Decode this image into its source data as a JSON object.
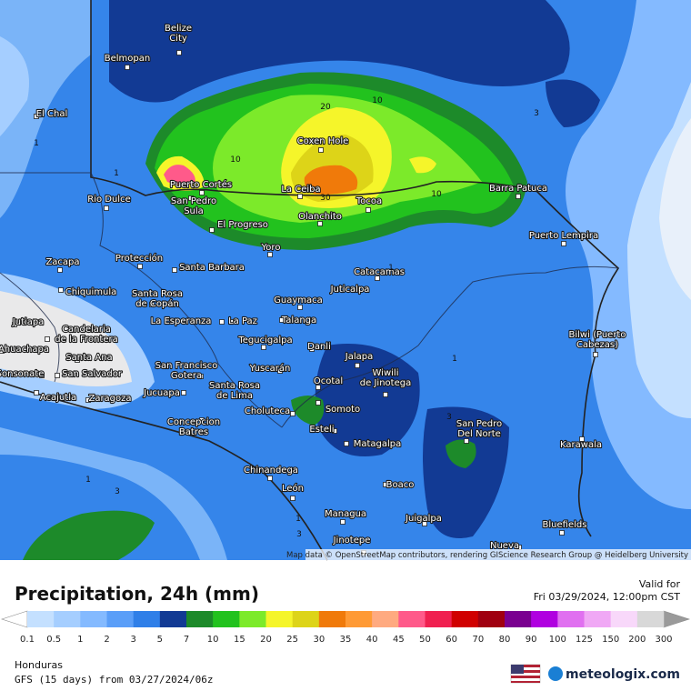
{
  "map": {
    "places": [
      {
        "lines": [
          "Belize",
          "City"
        ]
      },
      {
        "lines": [
          "Belmopan"
        ]
      },
      {
        "lines": [
          "El Chal"
        ]
      },
      {
        "lines": [
          "Rio Dulce"
        ]
      },
      {
        "lines": [
          "Puerto Cortés"
        ]
      },
      {
        "lines": [
          "San Pedro",
          "Sula"
        ]
      },
      {
        "lines": [
          "El Progreso"
        ]
      },
      {
        "lines": [
          "Coxen Hole"
        ]
      },
      {
        "lines": [
          "La Ceiba"
        ]
      },
      {
        "lines": [
          "Tocoa"
        ]
      },
      {
        "lines": [
          "Olanchito"
        ]
      },
      {
        "lines": [
          "Barra Patuca"
        ]
      },
      {
        "lines": [
          "Puerto Lempira"
        ]
      },
      {
        "lines": [
          "Yoro"
        ]
      },
      {
        "lines": [
          "Zacapa"
        ]
      },
      {
        "lines": [
          "Protección"
        ]
      },
      {
        "lines": [
          "Santa Barbara"
        ]
      },
      {
        "lines": [
          "Catacamas"
        ]
      },
      {
        "lines": [
          "Chiquimula"
        ]
      },
      {
        "lines": [
          "Santa Rosa",
          "de Copán"
        ]
      },
      {
        "lines": [
          "Guaymaca"
        ]
      },
      {
        "lines": [
          "Juticalpa"
        ]
      },
      {
        "lines": [
          "Jutiapa"
        ]
      },
      {
        "lines": [
          "Candelaria",
          "de la Frontera"
        ]
      },
      {
        "lines": [
          "La Esperanza"
        ]
      },
      {
        "lines": [
          "La Paz"
        ]
      },
      {
        "lines": [
          "Talanga"
        ]
      },
      {
        "lines": [
          "Bilwi (Puerto",
          "Cabezas)"
        ]
      },
      {
        "lines": [
          "Tegucigalpa"
        ]
      },
      {
        "lines": [
          "Danli"
        ]
      },
      {
        "lines": [
          "Jalapa"
        ]
      },
      {
        "lines": [
          "Ahuachapa"
        ]
      },
      {
        "lines": [
          "Santa Ana"
        ]
      },
      {
        "lines": [
          "San Francisco",
          "Gotera"
        ]
      },
      {
        "lines": [
          "Yuscarán"
        ]
      },
      {
        "lines": [
          "Wiwili",
          "de Jinotega"
        ]
      },
      {
        "lines": [
          "Sonsonate"
        ]
      },
      {
        "lines": [
          "San Salvador"
        ]
      },
      {
        "lines": [
          "Santa Rosa",
          "de Lima"
        ]
      },
      {
        "lines": [
          "Ocotal"
        ]
      },
      {
        "lines": [
          "Acajutla"
        ]
      },
      {
        "lines": [
          "Zaragoza"
        ]
      },
      {
        "lines": [
          "Jucuapa"
        ]
      },
      {
        "lines": [
          "Choluteca"
        ]
      },
      {
        "lines": [
          "Somoto"
        ]
      },
      {
        "lines": [
          "Concepcion",
          "Batres"
        ]
      },
      {
        "lines": [
          "Esteli"
        ]
      },
      {
        "lines": [
          "San Pedro",
          "Del Norte"
        ]
      },
      {
        "lines": [
          "Matagalpa"
        ]
      },
      {
        "lines": [
          "Karawala"
        ]
      },
      {
        "lines": [
          "Chinandega"
        ]
      },
      {
        "lines": [
          "Boaco"
        ]
      },
      {
        "lines": [
          "León"
        ]
      },
      {
        "lines": [
          "Managua"
        ]
      },
      {
        "lines": [
          "Juigalpa"
        ]
      },
      {
        "lines": [
          "Bluefields"
        ]
      },
      {
        "lines": [
          "Jinotepe"
        ]
      },
      {
        "lines": [
          "Nueva"
        ]
      }
    ],
    "contour_labels": [
      1,
      1,
      1,
      3,
      3,
      10,
      10,
      10,
      20,
      30,
      1,
      3,
      1,
      3,
      1
    ],
    "attribution": "Map data © OpenStreetMap contributors, rendering GIScience Research Group @ Heidelberg University"
  },
  "header": {
    "title": "Precipitation, 24h (mm)",
    "valid_label": "Valid for",
    "valid_time": "Fri 03/29/2024, 12:00pm CST"
  },
  "legend": {
    "ticks": [
      0.1,
      0.5,
      1,
      2,
      3,
      5,
      7,
      10,
      15,
      20,
      25,
      30,
      35,
      40,
      45,
      50,
      60,
      70,
      80,
      90,
      100,
      125,
      150,
      200,
      300
    ],
    "colors": [
      "#c4e0ff",
      "#a5ceff",
      "#84baff",
      "#5a9ef8",
      "#2f7fe8",
      "#123a94",
      "#1d8a2a",
      "#22c21e",
      "#7cea2a",
      "#f5f52a",
      "#ddd418",
      "#f07a0a",
      "#ff9a35",
      "#ffaa80",
      "#ff5a8a",
      "#f02050",
      "#d00000",
      "#a00010",
      "#7a0090",
      "#b000e0",
      "#e070f0",
      "#f0a8f5",
      "#f8d8fa",
      "#d8d8d8"
    ],
    "under_color": "#ffffff",
    "over_color": "#9a9a9a"
  },
  "footer": {
    "region": "Honduras",
    "model": "GFS (15 days) from 03/27/2024/06z",
    "brand": "meteologix.com"
  }
}
